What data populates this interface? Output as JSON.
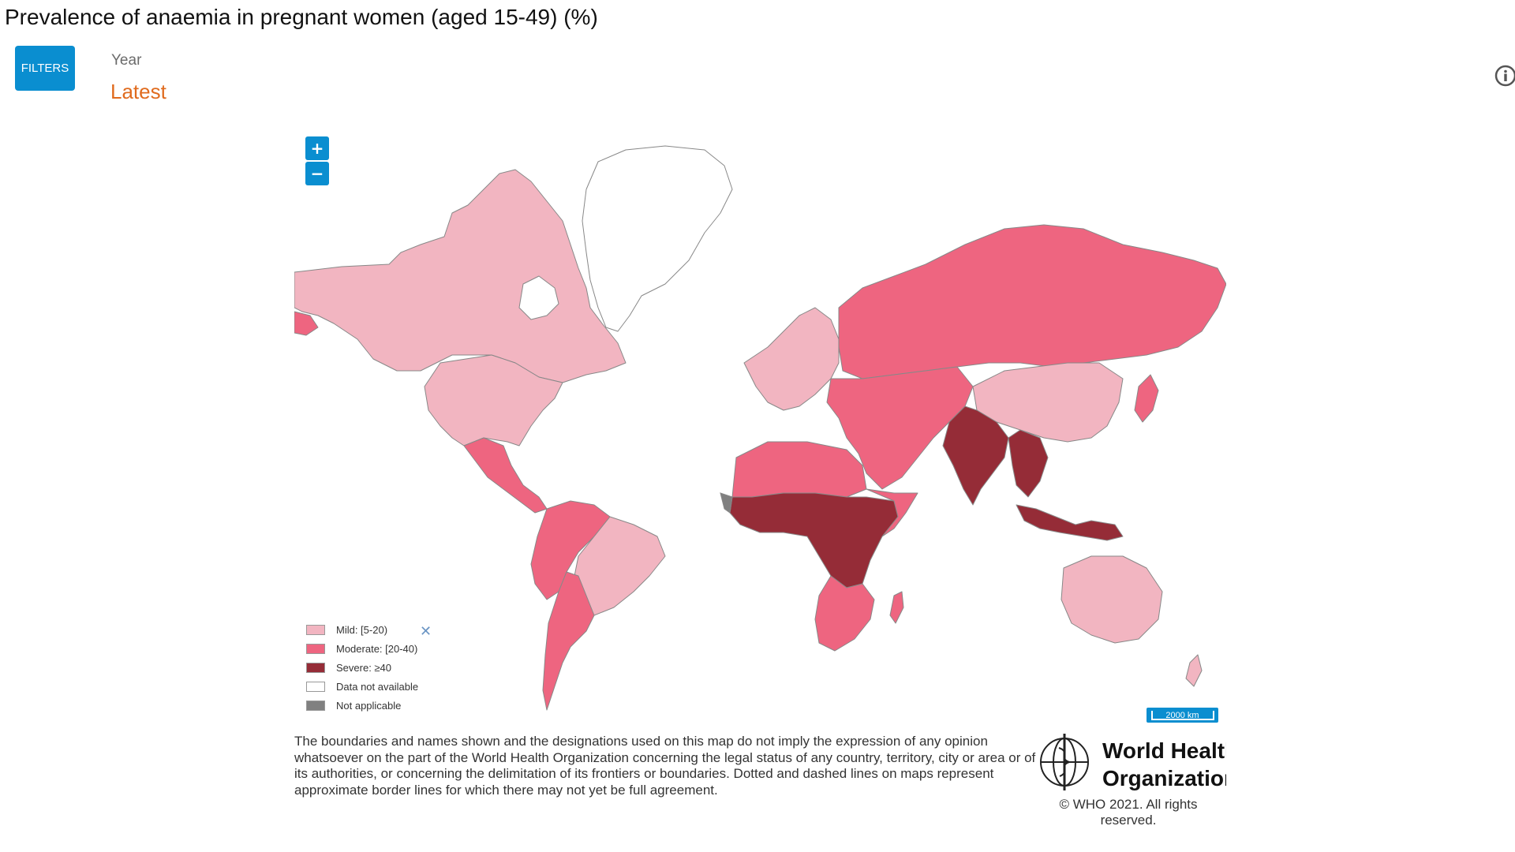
{
  "title": "Prevalence of anaemia in pregnant women (aged 15-49) (%)",
  "filters_button": "FILTERS",
  "filter": {
    "label": "Year",
    "value": "Latest"
  },
  "info_icon": "info-icon",
  "map": {
    "zoom_in": "+",
    "zoom_out": "−",
    "legend": [
      {
        "label": "Mild: [5-20)",
        "color": "#f2b5c1"
      },
      {
        "label": "Moderate: [20-40)",
        "color": "#ee6580"
      },
      {
        "label": "Severe: ≥40",
        "color": "#952c37"
      },
      {
        "label": "Data not available",
        "color": "#ffffff"
      },
      {
        "label": "Not applicable",
        "color": "#808080"
      }
    ],
    "legend_close": "✕",
    "scale": "2000 km"
  },
  "disclaimer": "The boundaries and names shown and the designations used on this map do not imply the expression of any opinion whatsoever on the part of the World Health Organization concerning the legal status of any country, territory, city or area or of its authorities, or concerning the delimitation of its frontiers or boundaries. Dotted and dashed lines on maps represent approximate border lines for which there may not yet be full agreement.",
  "logo": {
    "line1": "World Health",
    "line2": "Organization"
  },
  "copyright": "© WHO 2021. All rights reserved."
}
